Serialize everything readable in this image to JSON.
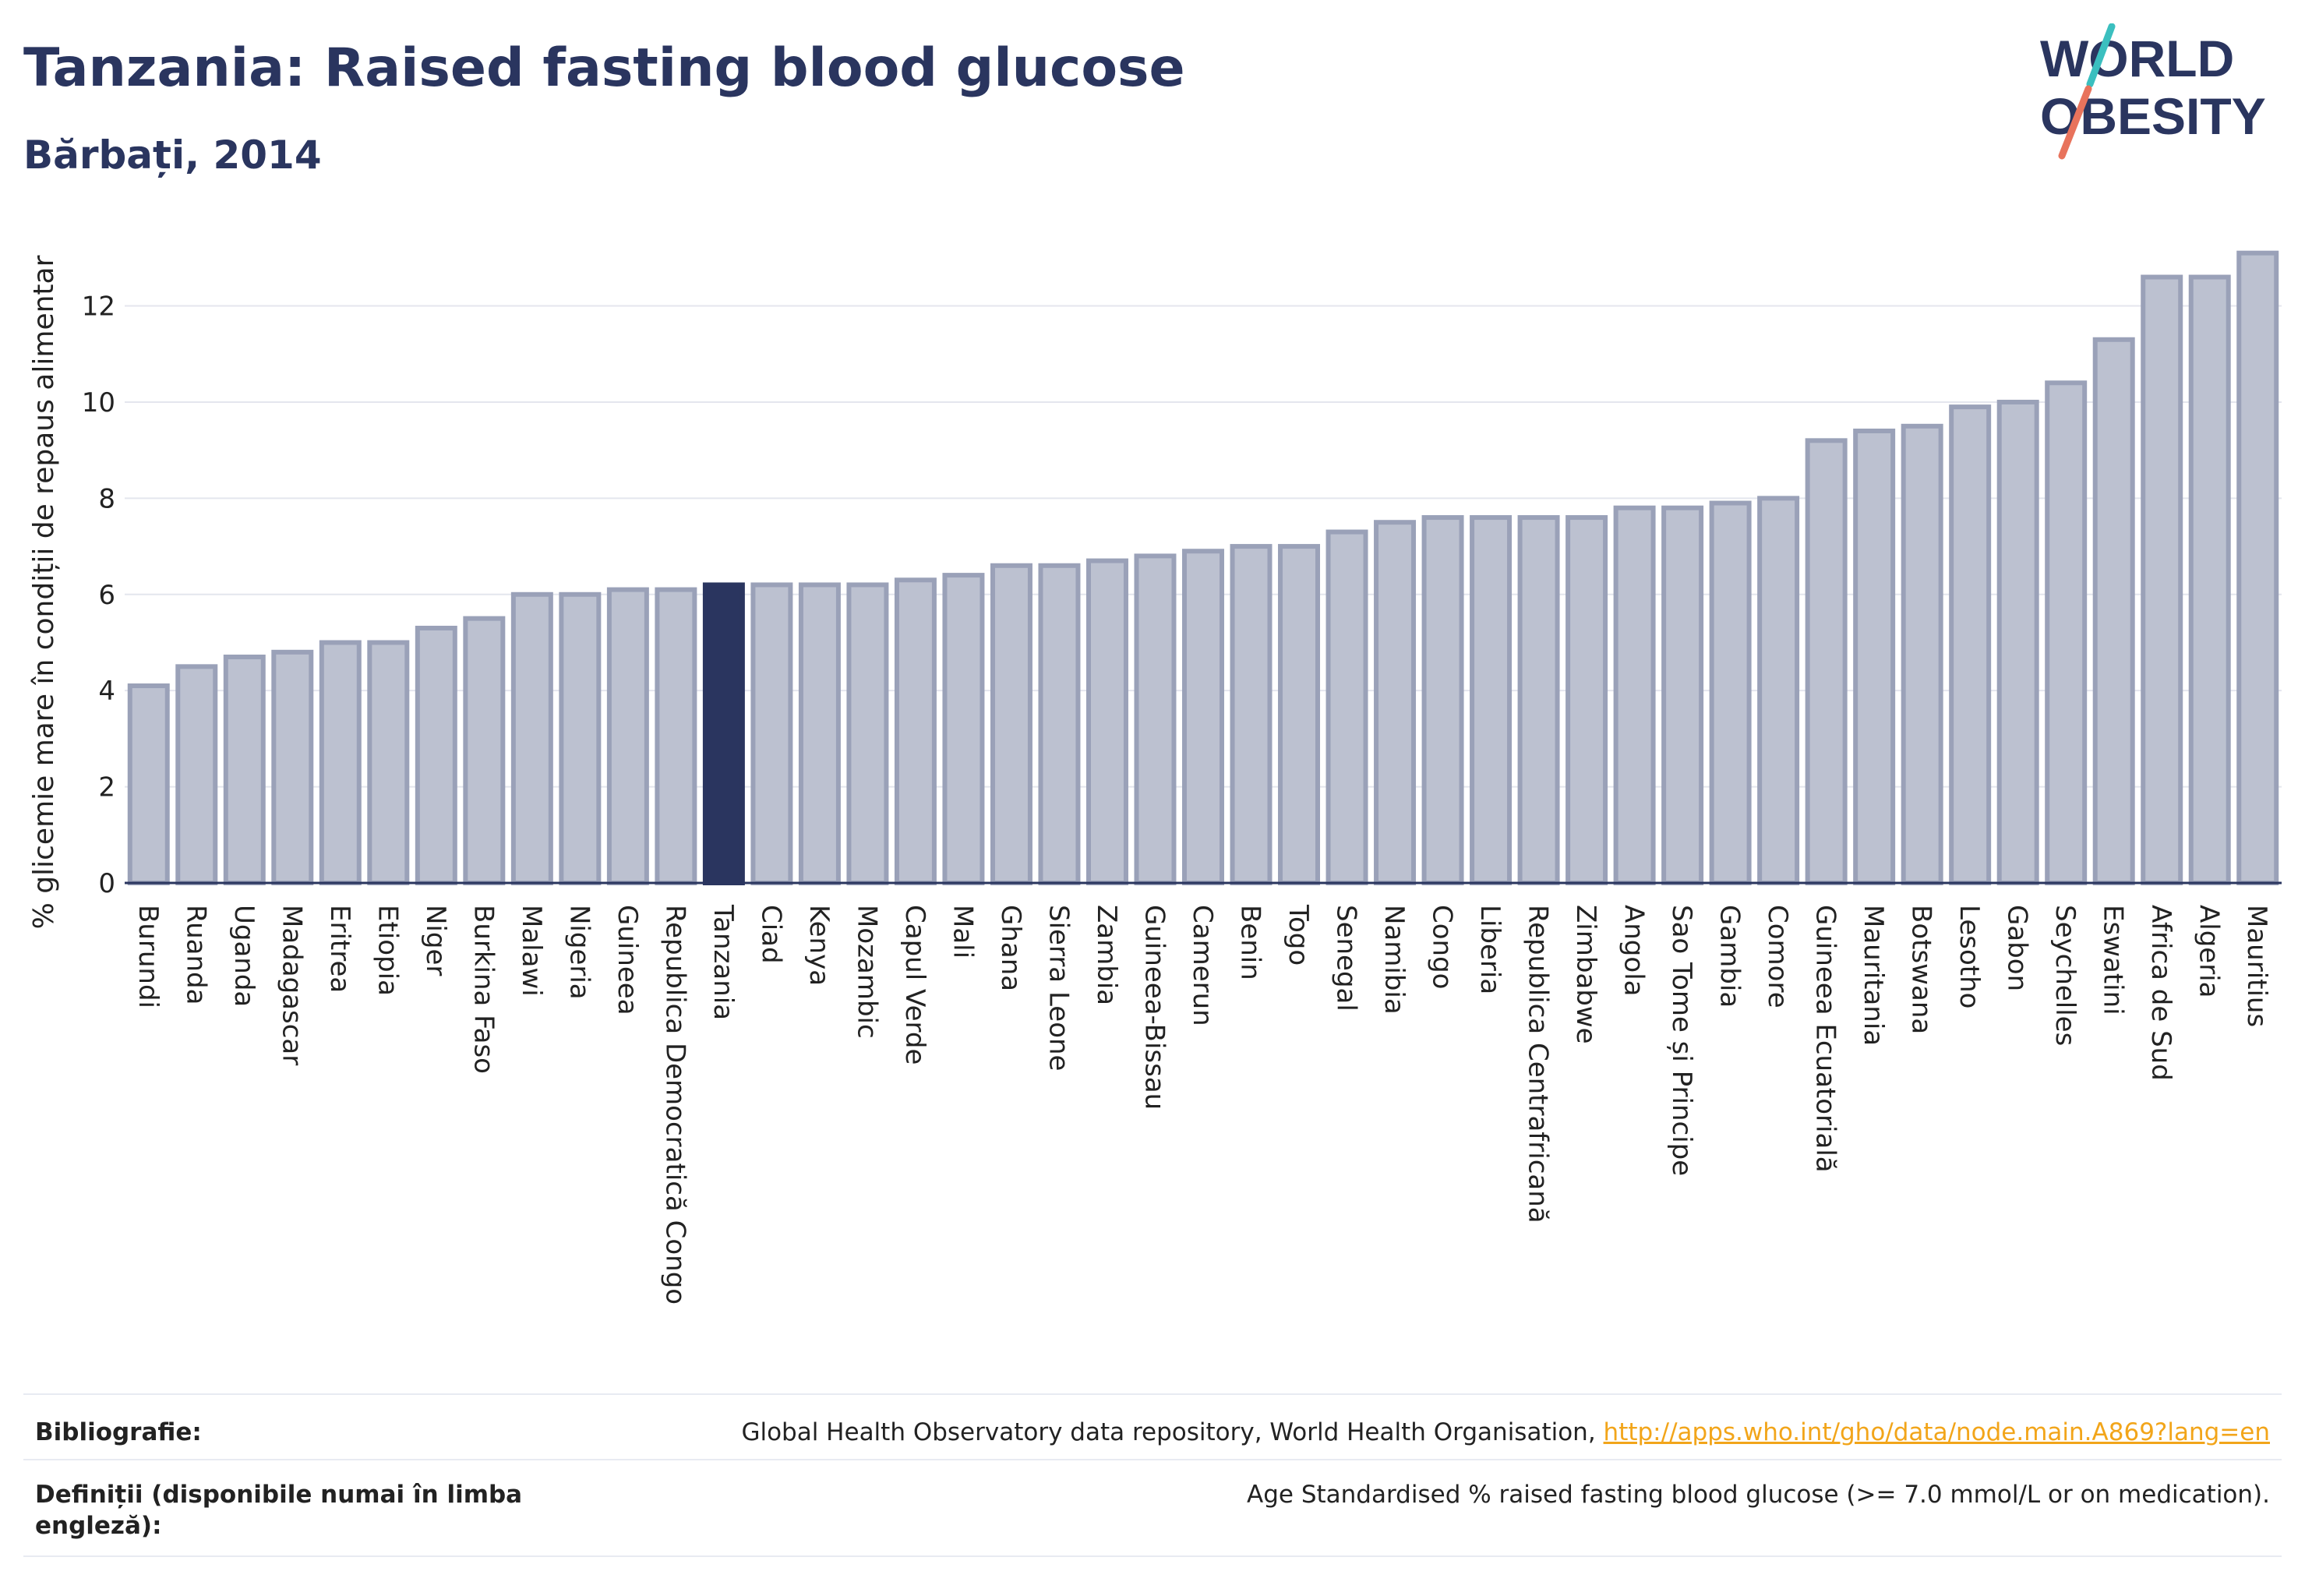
{
  "header": {
    "title": "Tanzania: Raised fasting blood glucose",
    "subtitle": "Bărbați, 2014"
  },
  "logo": {
    "line1": "WORLD",
    "line2": "OBESITY",
    "slash_top_color": "#3bbfbf",
    "slash_bottom_color": "#e8735c",
    "text_color": "#2a355f"
  },
  "chart_data": {
    "type": "bar",
    "ylabel": "% glicemie mare în condiții de repaus alimentar",
    "xlabel": "",
    "ylim": [
      0,
      13.5
    ],
    "yticks": [
      0,
      2,
      4,
      6,
      8,
      10,
      12
    ],
    "grid": true,
    "highlight": "Tanzania",
    "colors": {
      "bar_fill": "#bcc1d0",
      "bar_stroke": "#9aa1b8",
      "highlight_fill": "#2a355f",
      "axis": "#2a355f",
      "grid": "#e4e6ee"
    },
    "categories": [
      "Burundi",
      "Ruanda",
      "Uganda",
      "Madagascar",
      "Eritrea",
      "Etiopia",
      "Niger",
      "Burkina Faso",
      "Malawi",
      "Nigeria",
      "Guineea",
      "Republica Democratică Congo",
      "Tanzania",
      "Ciad",
      "Kenya",
      "Mozambic",
      "Capul Verde",
      "Mali",
      "Ghana",
      "Sierra Leone",
      "Zambia",
      "Guineea-Bissau",
      "Camerun",
      "Benin",
      "Togo",
      "Senegal",
      "Namibia",
      "Congo",
      "Liberia",
      "Republica Centrafricană",
      "Zimbabwe",
      "Angola",
      "Sao Tome și Principe",
      "Gambia",
      "Comore",
      "Guineea Ecuatorială",
      "Mauritania",
      "Botswana",
      "Lesotho",
      "Gabon",
      "Seychelles",
      "Eswatini",
      "Africa de Sud",
      "Algeria",
      "Mauritius"
    ],
    "values": [
      4.1,
      4.5,
      4.7,
      4.8,
      5.0,
      5.0,
      5.3,
      5.5,
      6.0,
      6.0,
      6.1,
      6.1,
      6.2,
      6.2,
      6.2,
      6.2,
      6.3,
      6.4,
      6.6,
      6.6,
      6.7,
      6.8,
      6.9,
      7.0,
      7.0,
      7.3,
      7.5,
      7.6,
      7.6,
      7.6,
      7.6,
      7.8,
      7.8,
      7.9,
      8.0,
      9.2,
      9.4,
      9.5,
      9.9,
      10.0,
      10.4,
      11.3,
      12.6,
      12.6,
      13.1
    ]
  },
  "footer": {
    "bibliography_label": "Bibliografie:",
    "bibliography_text": "Global Health Observatory data repository, World Health Organisation, ",
    "bibliography_link": "http://apps.who.int/gho/data/node.main.A869?lang=en",
    "definitions_label": "Definiții (disponibile numai în limba engleză):",
    "definitions_text": "Age Standardised % raised fasting blood glucose (>= 7.0 mmol/L or on medication)."
  }
}
